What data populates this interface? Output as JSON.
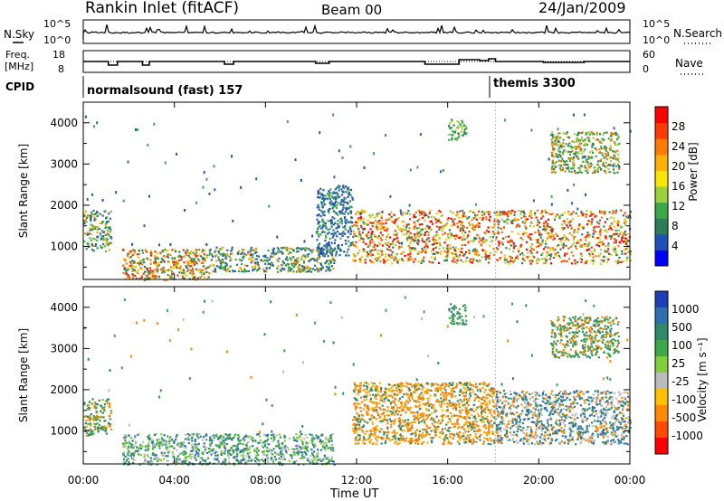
{
  "header": {
    "title": "Rankin Inlet (fitACF)",
    "beam": "Beam 00",
    "date": "24/Jan/2009"
  },
  "status_panel": {
    "nsky_label": "N.Sky",
    "nsearch_label": "N.Search",
    "freq_label_1": "Freq.",
    "freq_label_2": "[MHz]",
    "nave_label": "Nave",
    "cpid_label": "CPID",
    "left_ticks_top": [
      "10^5",
      "10^0"
    ],
    "right_ticks_top": [
      "10^5",
      "10^0"
    ],
    "freq_ticks": [
      "18",
      "8"
    ],
    "nave_ticks": [
      "60",
      "0"
    ],
    "cpid_segments": [
      {
        "label": "normalsound (fast) 157",
        "start_hour": 0
      },
      {
        "label": "themis 3300",
        "start_hour": 18.1
      }
    ]
  },
  "chart_data": [
    {
      "type": "heatmap",
      "name": "power",
      "ylabel": "Slant Range [km]",
      "xlabel": "",
      "x_ticks": [
        "00:00",
        "04:00",
        "08:00",
        "12:00",
        "16:00",
        "20:00",
        "00:00"
      ],
      "y_ticks": [
        "1000",
        "2000",
        "3000",
        "4000"
      ],
      "xlim": [
        0,
        24
      ],
      "ylim": [
        200,
        4500
      ],
      "colorbar": {
        "label": "Power [dB]",
        "ticks": [
          "28",
          "24",
          "20",
          "16",
          "12",
          "8",
          "4"
        ],
        "colors": [
          "#0000ff",
          "#1f4fb8",
          "#2e7d5a",
          "#3ca84a",
          "#9ad13c",
          "#f7e600",
          "#ffb000",
          "#ff7a00",
          "#ff3a00",
          "#ff0000"
        ]
      },
      "regions": [
        {
          "x0": 0.0,
          "x1": 1.2,
          "y0": 900,
          "y1": 1900,
          "colors": [
            "#3a8a4e",
            "#5cbf4a",
            "#2e5fb0",
            "#f0a000"
          ]
        },
        {
          "x0": 1.7,
          "x1": 5.5,
          "y0": 200,
          "y1": 950,
          "colors": [
            "#ff2a00",
            "#ff7a00",
            "#f7c800",
            "#3ca84a",
            "#2e7d5a"
          ]
        },
        {
          "x0": 5.5,
          "x1": 11.0,
          "y0": 400,
          "y1": 1000,
          "colors": [
            "#2e5fb0",
            "#2e7d5a",
            "#3ca84a",
            "#f0a000"
          ]
        },
        {
          "x0": 10.2,
          "x1": 11.8,
          "y0": 800,
          "y1": 2500,
          "colors": [
            "#2e5fb0",
            "#1f4fb8",
            "#3ca84a"
          ]
        },
        {
          "x0": 11.8,
          "x1": 24.0,
          "y0": 600,
          "y1": 1900,
          "colors": [
            "#ff0000",
            "#ff3a00",
            "#ff7a00",
            "#f7c800",
            "#9ad13c",
            "#2e7d5a"
          ]
        },
        {
          "x0": 16.0,
          "x1": 16.8,
          "y0": 3600,
          "y1": 4100,
          "colors": [
            "#3ca84a",
            "#9ad13c",
            "#2e7d5a"
          ]
        },
        {
          "x0": 20.5,
          "x1": 23.5,
          "y0": 2800,
          "y1": 3800,
          "colors": [
            "#ff7a00",
            "#9ad13c",
            "#2e7d5a",
            "#3ca84a"
          ]
        }
      ]
    },
    {
      "type": "heatmap",
      "name": "velocity",
      "ylabel": "Slant Range [km]",
      "xlabel": "Time UT",
      "x_ticks": [
        "00:00",
        "04:00",
        "08:00",
        "12:00",
        "16:00",
        "20:00",
        "00:00"
      ],
      "y_ticks": [
        "1000",
        "2000",
        "3000",
        "4000"
      ],
      "xlim": [
        0,
        24
      ],
      "ylim": [
        200,
        4500
      ],
      "colorbar": {
        "label": "Velocity [m s⁻¹]",
        "ticks": [
          "1000",
          "500",
          "100",
          "25",
          "-25",
          "-100",
          "-500",
          "-1000"
        ],
        "colors": [
          "#1f3fb8",
          "#2e6fb0",
          "#2e8a6a",
          "#3ca84a",
          "#7fd03c",
          "#bcbcbc",
          "#ffc000",
          "#ff8a00",
          "#ff4a00",
          "#ff0000"
        ]
      },
      "regions": [
        {
          "x0": 0.0,
          "x1": 1.2,
          "y0": 900,
          "y1": 1800,
          "colors": [
            "#ff8a00",
            "#2e8a6a",
            "#3ca84a"
          ]
        },
        {
          "x0": 1.7,
          "x1": 11.0,
          "y0": 200,
          "y1": 950,
          "colors": [
            "#2e8a6a",
            "#3ca84a",
            "#7fd03c",
            "#bcbcbc",
            "#2e6fb0"
          ]
        },
        {
          "x0": 11.8,
          "x1": 18.0,
          "y0": 700,
          "y1": 2200,
          "colors": [
            "#ff8a00",
            "#ff7a00",
            "#ffb000",
            "#2e8a6a"
          ]
        },
        {
          "x0": 18.0,
          "x1": 24.0,
          "y0": 700,
          "y1": 2000,
          "colors": [
            "#2e6fb0",
            "#2e8a6a",
            "#ff8a00",
            "#bcbcbc"
          ]
        },
        {
          "x0": 16.0,
          "x1": 16.8,
          "y0": 3600,
          "y1": 4100,
          "colors": [
            "#3ca84a",
            "#2e8a6a"
          ]
        },
        {
          "x0": 20.5,
          "x1": 23.5,
          "y0": 2800,
          "y1": 3800,
          "colors": [
            "#2e8a6a",
            "#3ca84a",
            "#ff8a00"
          ]
        }
      ]
    }
  ]
}
